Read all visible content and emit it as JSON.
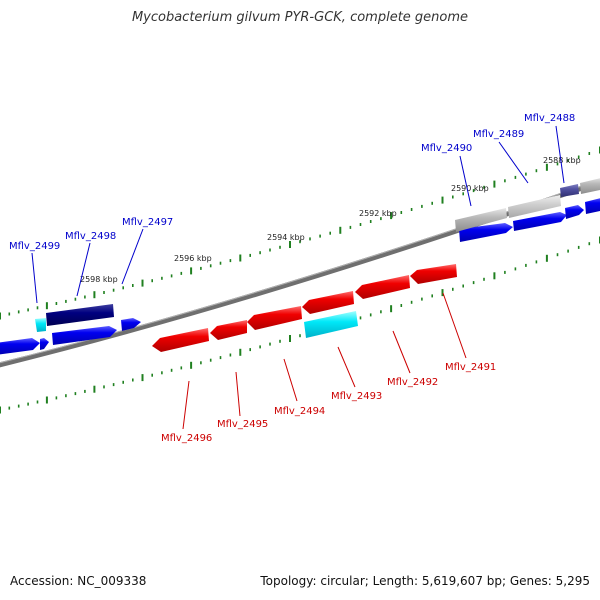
{
  "title": "Mycobacterium gilvum PYR-GCK, complete genome",
  "footer": {
    "accession": "Accession: NC_009338",
    "summary": "Topology: circular; Length: 5,619,607 bp; Genes: 5,295"
  },
  "colors": {
    "backbone": "#7a7a7a",
    "forward_gene": "#0000e6",
    "reverse_gene": "#e60000",
    "highlight": "#00e0f0",
    "dark_gene": "#000080",
    "gray_gene": "#b0b0b0",
    "tick": "#208020",
    "forward_label": "#0000cc",
    "reverse_label": "#cc0000"
  },
  "scale_labels": [
    "2588 kbp",
    "2590 kbp",
    "2592 kbp",
    "2594 kbp",
    "2596 kbp",
    "2598 kbp"
  ],
  "forward_gene_labels": [
    "Mflv_2488",
    "Mflv_2489",
    "Mflv_2490",
    "Mflv_2497",
    "Mflv_2498",
    "Mflv_2499"
  ],
  "reverse_gene_labels": [
    "Mflv_2491",
    "Mflv_2492",
    "Mflv_2493",
    "Mflv_2494",
    "Mflv_2495",
    "Mflv_2496"
  ]
}
